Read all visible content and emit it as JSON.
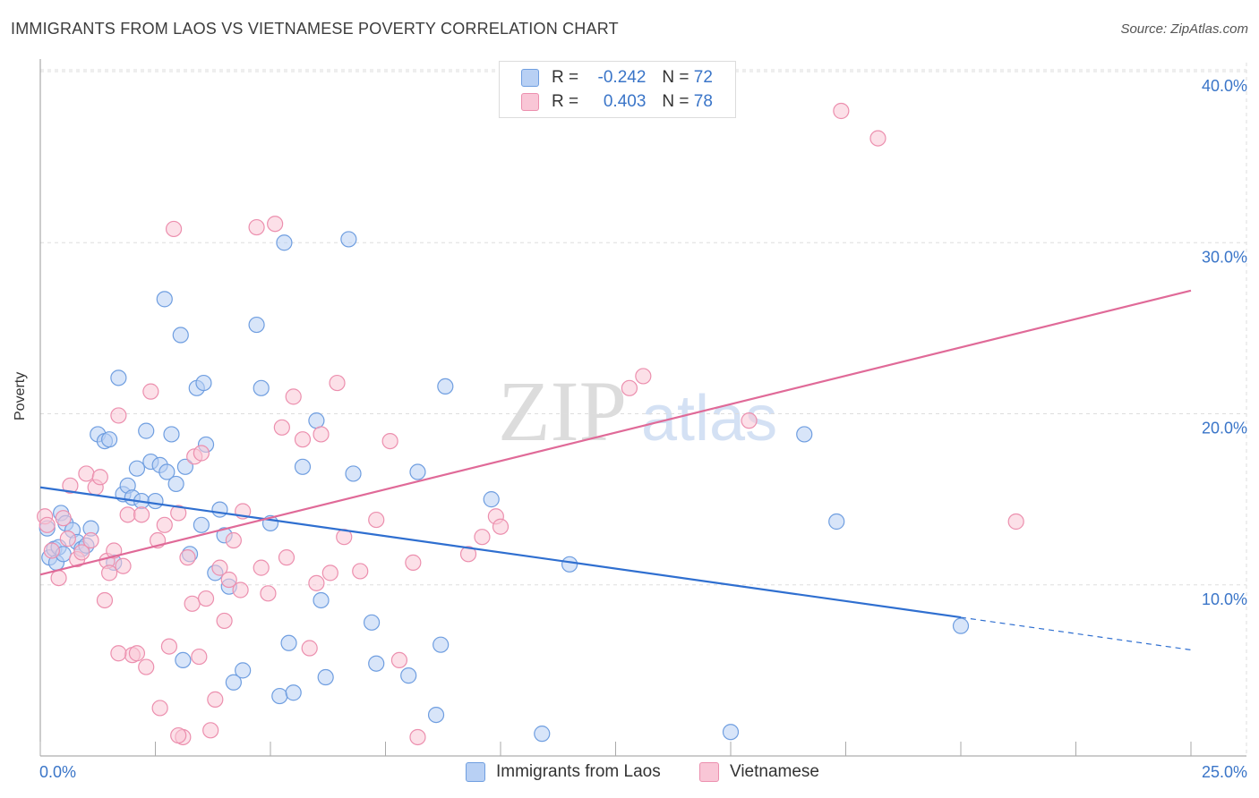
{
  "header": {
    "title": "IMMIGRANTS FROM LAOS VS VIETNAMESE POVERTY CORRELATION CHART",
    "source": "Source: ZipAtlas.com"
  },
  "legend": {
    "r_label": "R =",
    "n_label": "N =",
    "series": [
      {
        "r": "-0.242",
        "n": "72"
      },
      {
        "r": "0.403",
        "n": "78"
      }
    ]
  },
  "watermark": {
    "zip": "ZIP",
    "atlas": "atlas"
  },
  "colors": {
    "laos_fill": "#b8d0f4",
    "laos_stroke": "#6f9ee0",
    "laos_line": "#2f6fd0",
    "viet_fill": "#f9c6d6",
    "viet_stroke": "#ec8fae",
    "viet_line": "#e06a98",
    "axis_text": "#3a75c8",
    "grid": "#dddddd"
  },
  "chart_data": {
    "type": "scatter",
    "title": "IMMIGRANTS FROM LAOS VS VIETNAMESE POVERTY CORRELATION CHART",
    "xlabel": "",
    "ylabel": "Poverty",
    "xlim": [
      0,
      25
    ],
    "ylim": [
      0,
      40
    ],
    "x_tick_labels": [
      "0.0%",
      "25.0%"
    ],
    "y_ticks": [
      10,
      20,
      30,
      40
    ],
    "y_tick_labels": [
      "10.0%",
      "20.0%",
      "30.0%",
      "40.0%"
    ],
    "grid": true,
    "legend_position": "top-center",
    "series": [
      {
        "name": "Immigrants from Laos",
        "color": "#6f9ee0",
        "trend": {
          "x": [
            0,
            20
          ],
          "y": [
            15.7,
            8.1
          ],
          "dashed_x": [
            20,
            25
          ],
          "dashed_y": [
            8.1,
            6.2
          ]
        },
        "points": [
          [
            0.15,
            13.3
          ],
          [
            0.2,
            11.6
          ],
          [
            0.3,
            12.1
          ],
          [
            0.35,
            11.3
          ],
          [
            0.4,
            12.2
          ],
          [
            0.45,
            14.2
          ],
          [
            0.5,
            11.8
          ],
          [
            0.55,
            13.6
          ],
          [
            0.7,
            13.2
          ],
          [
            0.8,
            12.5
          ],
          [
            0.9,
            12.1
          ],
          [
            1.0,
            12.3
          ],
          [
            1.1,
            13.3
          ],
          [
            1.25,
            18.8
          ],
          [
            1.4,
            18.4
          ],
          [
            1.5,
            18.5
          ],
          [
            1.6,
            11.3
          ],
          [
            1.7,
            22.1
          ],
          [
            1.8,
            15.3
          ],
          [
            1.9,
            15.8
          ],
          [
            2.0,
            15.1
          ],
          [
            2.1,
            16.8
          ],
          [
            2.2,
            14.9
          ],
          [
            2.3,
            19.0
          ],
          [
            2.4,
            17.2
          ],
          [
            2.5,
            14.9
          ],
          [
            2.6,
            17.0
          ],
          [
            2.7,
            26.7
          ],
          [
            2.75,
            16.6
          ],
          [
            2.85,
            18.8
          ],
          [
            2.95,
            15.9
          ],
          [
            3.05,
            24.6
          ],
          [
            3.1,
            5.6
          ],
          [
            3.15,
            16.9
          ],
          [
            3.25,
            11.8
          ],
          [
            3.4,
            21.5
          ],
          [
            3.5,
            13.5
          ],
          [
            3.55,
            21.8
          ],
          [
            3.6,
            18.2
          ],
          [
            3.8,
            10.7
          ],
          [
            3.9,
            14.4
          ],
          [
            4.0,
            12.9
          ],
          [
            4.1,
            9.9
          ],
          [
            4.2,
            4.3
          ],
          [
            4.4,
            5.0
          ],
          [
            4.7,
            25.2
          ],
          [
            4.8,
            21.5
          ],
          [
            5.0,
            13.6
          ],
          [
            5.2,
            3.5
          ],
          [
            5.3,
            30.0
          ],
          [
            5.4,
            6.6
          ],
          [
            5.5,
            3.7
          ],
          [
            5.7,
            16.9
          ],
          [
            6.0,
            19.6
          ],
          [
            6.1,
            9.1
          ],
          [
            6.2,
            4.6
          ],
          [
            6.7,
            30.2
          ],
          [
            6.8,
            16.5
          ],
          [
            7.2,
            7.8
          ],
          [
            7.3,
            5.4
          ],
          [
            8.0,
            4.7
          ],
          [
            8.2,
            16.6
          ],
          [
            8.6,
            2.4
          ],
          [
            8.7,
            6.5
          ],
          [
            8.8,
            21.6
          ],
          [
            9.8,
            15.0
          ],
          [
            10.9,
            1.3
          ],
          [
            11.5,
            11.2
          ],
          [
            15.0,
            1.4
          ],
          [
            16.6,
            18.8
          ],
          [
            17.3,
            13.7
          ],
          [
            20.0,
            7.6
          ]
        ]
      },
      {
        "name": "Vietnamese",
        "color": "#ec8fae",
        "trend": {
          "x": [
            0,
            25
          ],
          "y": [
            10.6,
            27.2
          ]
        },
        "points": [
          [
            0.1,
            14.0
          ],
          [
            0.15,
            13.5
          ],
          [
            0.25,
            12.0
          ],
          [
            0.4,
            10.4
          ],
          [
            0.5,
            13.9
          ],
          [
            0.6,
            12.7
          ],
          [
            0.65,
            15.8
          ],
          [
            0.8,
            11.5
          ],
          [
            0.9,
            11.9
          ],
          [
            1.0,
            16.5
          ],
          [
            1.1,
            12.6
          ],
          [
            1.2,
            15.7
          ],
          [
            1.3,
            16.3
          ],
          [
            1.4,
            9.1
          ],
          [
            1.45,
            11.4
          ],
          [
            1.5,
            10.7
          ],
          [
            1.6,
            12.0
          ],
          [
            1.7,
            19.9
          ],
          [
            1.8,
            11.1
          ],
          [
            1.9,
            14.1
          ],
          [
            2.0,
            5.9
          ],
          [
            2.1,
            6.0
          ],
          [
            2.2,
            14.1
          ],
          [
            2.3,
            5.2
          ],
          [
            2.4,
            21.3
          ],
          [
            2.55,
            12.6
          ],
          [
            2.6,
            2.8
          ],
          [
            2.7,
            13.5
          ],
          [
            2.8,
            6.4
          ],
          [
            2.9,
            30.8
          ],
          [
            3.0,
            14.2
          ],
          [
            3.1,
            1.1
          ],
          [
            3.2,
            11.6
          ],
          [
            3.3,
            8.9
          ],
          [
            3.35,
            17.5
          ],
          [
            3.45,
            5.8
          ],
          [
            3.5,
            17.7
          ],
          [
            3.6,
            9.2
          ],
          [
            3.7,
            1.5
          ],
          [
            3.8,
            3.3
          ],
          [
            3.9,
            11.0
          ],
          [
            4.0,
            7.9
          ],
          [
            4.1,
            10.3
          ],
          [
            4.2,
            12.6
          ],
          [
            4.35,
            9.7
          ],
          [
            4.4,
            14.3
          ],
          [
            4.7,
            30.9
          ],
          [
            4.8,
            11.0
          ],
          [
            4.95,
            9.5
          ],
          [
            5.1,
            31.1
          ],
          [
            5.25,
            19.2
          ],
          [
            5.35,
            11.6
          ],
          [
            5.5,
            21.0
          ],
          [
            5.85,
            6.3
          ],
          [
            6.0,
            10.1
          ],
          [
            6.1,
            18.8
          ],
          [
            6.3,
            10.7
          ],
          [
            6.45,
            21.8
          ],
          [
            6.6,
            12.8
          ],
          [
            6.95,
            10.8
          ],
          [
            7.3,
            13.8
          ],
          [
            7.6,
            18.4
          ],
          [
            7.8,
            5.6
          ],
          [
            8.1,
            11.3
          ],
          [
            8.2,
            1.1
          ],
          [
            9.3,
            11.8
          ],
          [
            9.6,
            12.8
          ],
          [
            9.9,
            14.0
          ],
          [
            10.0,
            13.4
          ],
          [
            12.8,
            21.5
          ],
          [
            13.1,
            22.2
          ],
          [
            15.4,
            19.6
          ],
          [
            17.4,
            37.7
          ],
          [
            18.2,
            36.1
          ],
          [
            21.2,
            13.7
          ],
          [
            5.7,
            18.5
          ],
          [
            3.0,
            1.2
          ],
          [
            1.7,
            6.0
          ]
        ]
      }
    ]
  },
  "bottom_legend": [
    "Immigrants from Laos",
    "Vietnamese"
  ]
}
